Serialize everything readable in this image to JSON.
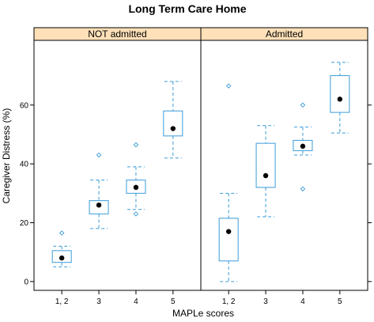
{
  "chart_data": {
    "type": "boxplot",
    "title": "Long Term Care Home",
    "xlabel": "MAPLe scores",
    "ylabel": "Caregiver Distress (%)",
    "ylim": [
      -3,
      82
    ],
    "yticks": [
      0,
      20,
      40,
      60
    ],
    "categories": [
      "1, 2",
      "3",
      "4",
      "5"
    ],
    "colors": {
      "box": "#3a9bd9",
      "strip": "#ffe0b8",
      "median": "#000000",
      "frame": "#000000"
    },
    "panels": [
      {
        "name": "NOT admitted",
        "boxes": [
          {
            "category": "1, 2",
            "whisker_low": 5,
            "q1": 6.5,
            "median": 8,
            "q3": 10.5,
            "whisker_high": 12,
            "outliers": [
              16.5
            ]
          },
          {
            "category": "3",
            "whisker_low": 18,
            "q1": 23,
            "median": 26,
            "q3": 27.5,
            "whisker_high": 34.5,
            "outliers": [
              43
            ]
          },
          {
            "category": "4",
            "whisker_low": 24.5,
            "q1": 30,
            "median": 32,
            "q3": 34.5,
            "whisker_high": 39,
            "outliers": [
              23,
              46.5
            ]
          },
          {
            "category": "5",
            "whisker_low": 42,
            "q1": 49.5,
            "median": 52,
            "q3": 58,
            "whisker_high": 68,
            "outliers": []
          }
        ]
      },
      {
        "name": "Admitted",
        "boxes": [
          {
            "category": "1, 2",
            "whisker_low": 0,
            "q1": 7,
            "median": 17,
            "q3": 21.5,
            "whisker_high": 30,
            "outliers": [
              66.5
            ]
          },
          {
            "category": "3",
            "whisker_low": 22,
            "q1": 32,
            "median": 36,
            "q3": 47,
            "whisker_high": 53,
            "outliers": []
          },
          {
            "category": "4",
            "whisker_low": 43,
            "q1": 44.5,
            "median": 46,
            "q3": 48,
            "whisker_high": 52.5,
            "outliers": [
              31.5,
              60
            ]
          },
          {
            "category": "5",
            "whisker_low": 50.5,
            "q1": 57.5,
            "median": 62,
            "q3": 70,
            "whisker_high": 74.5,
            "outliers": []
          }
        ]
      }
    ]
  }
}
